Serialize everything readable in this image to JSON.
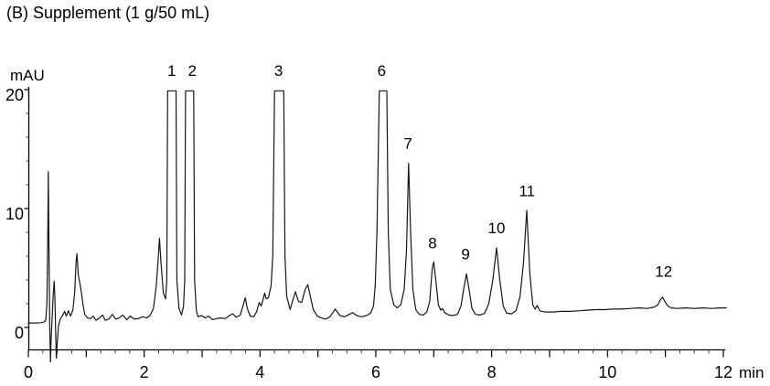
{
  "title": "(B) Supplement (1 g/50 mL)",
  "chart_data": {
    "type": "line",
    "title": "(B) Supplement (1 g/50 mL)",
    "xlabel": "min",
    "ylabel": "mAU",
    "x_axis": {
      "unit": "min",
      "range": [
        0,
        12.05
      ],
      "major_ticks": [
        0,
        2,
        4,
        6,
        8,
        10,
        12
      ],
      "minor_step": 0.25
    },
    "y_axis": {
      "unit": "mAU",
      "range": [
        -1.9,
        20.3
      ],
      "major_ticks": [
        0,
        10,
        20
      ],
      "minor_step": 2
    },
    "grid": "off",
    "clip_level_mau": 19.9,
    "peaks": [
      {
        "label": "1",
        "apex_t": 2.475,
        "apex_mau": 20.0,
        "clipped": true,
        "label_t": 2.475,
        "label_mau": 21.6
      },
      {
        "label": "2",
        "apex_t": 2.785,
        "apex_mau": 20.0,
        "clipped": true,
        "label_t": 2.83,
        "label_mau": 21.6
      },
      {
        "label": "3",
        "apex_t": 4.345,
        "apex_mau": 20.0,
        "clipped": true,
        "label_t": 4.32,
        "label_mau": 21.6
      },
      {
        "label": "6",
        "apex_t": 6.125,
        "apex_mau": 20.0,
        "clipped": true,
        "label_t": 6.1,
        "label_mau": 21.6
      },
      {
        "label": "7",
        "apex_t": 6.565,
        "apex_mau": 13.8,
        "clipped": false,
        "label_t": 6.555,
        "label_mau": 15.5
      },
      {
        "label": "8",
        "apex_t": 6.99,
        "apex_mau": 5.5,
        "clipped": false,
        "label_t": 6.98,
        "label_mau": 7.1
      },
      {
        "label": "9",
        "apex_t": 7.555,
        "apex_mau": 4.5,
        "clipped": false,
        "label_t": 7.55,
        "label_mau": 6.2
      },
      {
        "label": "10",
        "apex_t": 8.085,
        "apex_mau": 6.7,
        "clipped": false,
        "label_t": 8.085,
        "label_mau": 8.4
      },
      {
        "label": "11",
        "apex_t": 8.605,
        "apex_mau": 9.85,
        "clipped": false,
        "label_t": 8.61,
        "label_mau": 11.5
      },
      {
        "label": "12",
        "apex_t": 10.95,
        "apex_mau": 2.55,
        "clipped": false,
        "label_t": 10.97,
        "label_mau": 4.75
      }
    ],
    "trace": [
      [
        0.0,
        0.38
      ],
      [
        0.12,
        0.38
      ],
      [
        0.22,
        0.4
      ],
      [
        0.27,
        0.45
      ],
      [
        0.3,
        0.6
      ],
      [
        0.32,
        2.0
      ],
      [
        0.335,
        7.0
      ],
      [
        0.345,
        13.1
      ],
      [
        0.355,
        7.0
      ],
      [
        0.37,
        0.0
      ],
      [
        0.382,
        -2.9
      ],
      [
        0.392,
        -1.2
      ],
      [
        0.41,
        0.8
      ],
      [
        0.43,
        2.8
      ],
      [
        0.445,
        3.9
      ],
      [
        0.458,
        2.6
      ],
      [
        0.472,
        -0.5
      ],
      [
        0.483,
        -2.6
      ],
      [
        0.497,
        -1.4
      ],
      [
        0.52,
        0.1
      ],
      [
        0.55,
        0.7
      ],
      [
        0.59,
        1.0
      ],
      [
        0.625,
        1.35
      ],
      [
        0.655,
        0.95
      ],
      [
        0.69,
        1.4
      ],
      [
        0.73,
        0.95
      ],
      [
        0.77,
        1.5
      ],
      [
        0.8,
        3.0
      ],
      [
        0.825,
        5.5
      ],
      [
        0.84,
        6.2
      ],
      [
        0.862,
        4.4
      ],
      [
        0.89,
        3.7
      ],
      [
        0.915,
        3.0
      ],
      [
        0.945,
        1.9
      ],
      [
        0.975,
        1.1
      ],
      [
        1.02,
        0.8
      ],
      [
        1.07,
        0.75
      ],
      [
        1.12,
        0.95
      ],
      [
        1.17,
        0.6
      ],
      [
        1.23,
        0.8
      ],
      [
        1.28,
        1.05
      ],
      [
        1.33,
        0.6
      ],
      [
        1.39,
        0.7
      ],
      [
        1.45,
        1.1
      ],
      [
        1.51,
        0.7
      ],
      [
        1.57,
        0.8
      ],
      [
        1.63,
        1.05
      ],
      [
        1.7,
        0.65
      ],
      [
        1.76,
        0.95
      ],
      [
        1.83,
        0.7
      ],
      [
        1.9,
        0.75
      ],
      [
        1.97,
        0.9
      ],
      [
        2.04,
        0.8
      ],
      [
        2.1,
        1.0
      ],
      [
        2.16,
        1.6
      ],
      [
        2.21,
        3.6
      ],
      [
        2.245,
        6.0
      ],
      [
        2.265,
        7.5
      ],
      [
        2.29,
        5.5
      ],
      [
        2.33,
        2.9
      ],
      [
        2.37,
        2.4
      ],
      [
        2.39,
        4.0
      ],
      [
        2.405,
        19.9
      ],
      [
        2.55,
        19.9
      ],
      [
        2.565,
        4.0
      ],
      [
        2.6,
        1.6
      ],
      [
        2.645,
        1.05
      ],
      [
        2.68,
        1.8
      ],
      [
        2.7,
        4.0
      ],
      [
        2.715,
        19.9
      ],
      [
        2.855,
        19.9
      ],
      [
        2.87,
        4.0
      ],
      [
        2.9,
        1.4
      ],
      [
        2.93,
        0.9
      ],
      [
        2.99,
        1.0
      ],
      [
        3.05,
        0.8
      ],
      [
        3.11,
        0.95
      ],
      [
        3.18,
        0.65
      ],
      [
        3.25,
        0.75
      ],
      [
        3.32,
        0.8
      ],
      [
        3.4,
        0.75
      ],
      [
        3.47,
        1.0
      ],
      [
        3.53,
        1.15
      ],
      [
        3.59,
        0.85
      ],
      [
        3.66,
        1.05
      ],
      [
        3.71,
        1.9
      ],
      [
        3.745,
        2.5
      ],
      [
        3.78,
        1.6
      ],
      [
        3.83,
        0.95
      ],
      [
        3.89,
        0.9
      ],
      [
        3.94,
        1.3
      ],
      [
        3.985,
        2.1
      ],
      [
        4.02,
        1.8
      ],
      [
        4.05,
        2.3
      ],
      [
        4.08,
        2.9
      ],
      [
        4.11,
        2.4
      ],
      [
        4.145,
        2.5
      ],
      [
        4.19,
        3.5
      ],
      [
        4.22,
        6.0
      ],
      [
        4.25,
        19.9
      ],
      [
        4.41,
        19.9
      ],
      [
        4.43,
        6.0
      ],
      [
        4.46,
        2.6
      ],
      [
        4.52,
        1.5
      ],
      [
        4.56,
        2.2
      ],
      [
        4.61,
        3.0
      ],
      [
        4.665,
        2.2
      ],
      [
        4.72,
        2.1
      ],
      [
        4.78,
        3.2
      ],
      [
        4.825,
        3.6
      ],
      [
        4.87,
        2.6
      ],
      [
        4.92,
        1.5
      ],
      [
        4.99,
        0.95
      ],
      [
        5.06,
        0.8
      ],
      [
        5.13,
        0.7
      ],
      [
        5.21,
        0.9
      ],
      [
        5.3,
        1.55
      ],
      [
        5.38,
        1.0
      ],
      [
        5.46,
        0.9
      ],
      [
        5.54,
        1.1
      ],
      [
        5.6,
        1.25
      ],
      [
        5.67,
        1.0
      ],
      [
        5.75,
        0.9
      ],
      [
        5.84,
        1.0
      ],
      [
        5.91,
        1.2
      ],
      [
        5.96,
        1.8
      ],
      [
        5.99,
        3.5
      ],
      [
        6.02,
        8.0
      ],
      [
        6.06,
        19.9
      ],
      [
        6.19,
        19.9
      ],
      [
        6.215,
        8.0
      ],
      [
        6.25,
        3.2
      ],
      [
        6.31,
        1.9
      ],
      [
        6.37,
        1.65
      ],
      [
        6.43,
        1.9
      ],
      [
        6.49,
        3.2
      ],
      [
        6.53,
        6.5
      ],
      [
        6.565,
        13.8
      ],
      [
        6.6,
        8.0
      ],
      [
        6.64,
        3.2
      ],
      [
        6.69,
        1.5
      ],
      [
        6.75,
        1.1
      ],
      [
        6.82,
        1.05
      ],
      [
        6.88,
        1.3
      ],
      [
        6.93,
        2.2
      ],
      [
        6.975,
        5.0
      ],
      [
        7.0,
        5.5
      ],
      [
        7.03,
        4.2
      ],
      [
        7.08,
        1.9
      ],
      [
        7.12,
        1.45
      ],
      [
        7.15,
        1.6
      ],
      [
        7.19,
        1.25
      ],
      [
        7.26,
        1.05
      ],
      [
        7.33,
        1.0
      ],
      [
        7.41,
        1.1
      ],
      [
        7.47,
        1.8
      ],
      [
        7.52,
        3.3
      ],
      [
        7.565,
        4.5
      ],
      [
        7.61,
        3.2
      ],
      [
        7.66,
        1.6
      ],
      [
        7.72,
        1.1
      ],
      [
        7.8,
        1.05
      ],
      [
        7.88,
        1.2
      ],
      [
        7.95,
        2.0
      ],
      [
        8.02,
        4.0
      ],
      [
        8.085,
        6.7
      ],
      [
        8.14,
        4.0
      ],
      [
        8.2,
        1.8
      ],
      [
        8.26,
        1.2
      ],
      [
        8.34,
        1.15
      ],
      [
        8.42,
        1.4
      ],
      [
        8.49,
        2.6
      ],
      [
        8.55,
        5.5
      ],
      [
        8.605,
        9.85
      ],
      [
        8.66,
        4.5
      ],
      [
        8.71,
        1.9
      ],
      [
        8.75,
        1.55
      ],
      [
        8.785,
        1.85
      ],
      [
        8.83,
        1.4
      ],
      [
        8.92,
        1.3
      ],
      [
        9.05,
        1.3
      ],
      [
        9.2,
        1.35
      ],
      [
        9.35,
        1.35
      ],
      [
        9.5,
        1.4
      ],
      [
        9.65,
        1.45
      ],
      [
        9.8,
        1.5
      ],
      [
        9.95,
        1.5
      ],
      [
        10.1,
        1.55
      ],
      [
        10.25,
        1.55
      ],
      [
        10.4,
        1.6
      ],
      [
        10.55,
        1.65
      ],
      [
        10.68,
        1.6
      ],
      [
        10.8,
        1.7
      ],
      [
        10.87,
        1.9
      ],
      [
        10.91,
        2.3
      ],
      [
        10.95,
        2.55
      ],
      [
        10.99,
        2.2
      ],
      [
        11.04,
        1.8
      ],
      [
        11.1,
        1.65
      ],
      [
        11.2,
        1.6
      ],
      [
        11.35,
        1.65
      ],
      [
        11.5,
        1.6
      ],
      [
        11.65,
        1.65
      ],
      [
        11.8,
        1.6
      ],
      [
        11.95,
        1.65
      ],
      [
        12.05,
        1.65
      ]
    ]
  }
}
